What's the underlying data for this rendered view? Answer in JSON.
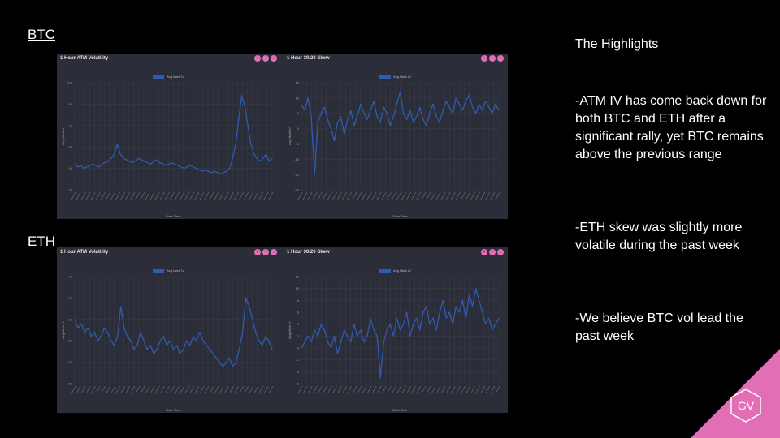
{
  "sections": {
    "btc": "BTC",
    "eth": "ETH"
  },
  "highlights": {
    "title": "The Highlights",
    "points": [
      "-ATM IV has come back down for both BTC and ETH after a significant rally, yet BTC remains above the previous range",
      "-ETH skew was slightly more volatile during the past week",
      "-We believe BTC vol lead the past week"
    ]
  },
  "logo": {
    "text": "GV",
    "color": "#e26fb5"
  },
  "colors": {
    "panel_bg": "#2b2d38",
    "series": "#2f5bb0",
    "accent": "#e26fb5"
  },
  "panel_icons": [
    "zoom-in-icon",
    "zoom-out-icon",
    "download-icon"
  ],
  "chart_data": [
    {
      "id": "btc-atm",
      "type": "line",
      "title": "1 Hour ATM Volatility",
      "xlabel": "Date Time",
      "ylabel": "Avg Mark IV",
      "legend": "top-center",
      "grid": true,
      "ylim": [
        30,
        105
      ],
      "yticks": [
        30,
        45,
        60,
        75,
        90,
        105
      ],
      "series": [
        {
          "name": "Avg Mark IV",
          "values": [
            48,
            46,
            47,
            45,
            46,
            47,
            48,
            47,
            46,
            48,
            49,
            50,
            52,
            55,
            62,
            55,
            52,
            51,
            50,
            49,
            50,
            52,
            51,
            50,
            49,
            48,
            50,
            51,
            49,
            48,
            47,
            48,
            49,
            48,
            47,
            46,
            45,
            46,
            47,
            46,
            45,
            44,
            43,
            44,
            43,
            42,
            43,
            42,
            41,
            42,
            43,
            45,
            52,
            62,
            80,
            96,
            88,
            75,
            62,
            55,
            52,
            50,
            52,
            55,
            50,
            52
          ]
        }
      ]
    },
    {
      "id": "btc-skew",
      "type": "line",
      "title": "1 Hour 30/20 Skew",
      "xlabel": "Date Time",
      "ylabel": "Avg Mark IV",
      "legend": "top-center",
      "grid": true,
      "ylim": [
        -20,
        15
      ],
      "yticks": [
        -20,
        -15,
        -10,
        -5,
        0,
        5,
        10,
        15
      ],
      "series": [
        {
          "name": "Avg Mark IV",
          "values": [
            8,
            6,
            10,
            4,
            -15,
            2,
            5,
            7,
            3,
            0,
            -4,
            2,
            4,
            -2,
            3,
            6,
            1,
            4,
            8,
            5,
            3,
            6,
            9,
            4,
            2,
            7,
            5,
            1,
            4,
            8,
            12,
            5,
            3,
            6,
            2,
            4,
            7,
            3,
            1,
            5,
            8,
            4,
            2,
            6,
            9,
            7,
            5,
            10,
            8,
            6,
            9,
            11,
            7,
            5,
            8,
            6,
            9,
            7,
            5,
            8,
            6
          ]
        }
      ]
    },
    {
      "id": "eth-atm",
      "type": "line",
      "title": "1 Hour ATM Volatility",
      "xlabel": "Date Time",
      "ylabel": "Avg Mark IV",
      "legend": "top-center",
      "grid": true,
      "ylim": [
        50,
        75
      ],
      "yticks": [
        50,
        55,
        60,
        65,
        70,
        75
      ],
      "series": [
        {
          "name": "Avg Mark IV",
          "values": [
            65,
            63,
            64,
            62,
            63,
            61,
            62,
            60,
            61,
            63,
            62,
            60,
            59,
            61,
            68,
            63,
            61,
            60,
            58,
            59,
            62,
            60,
            58,
            59,
            57,
            58,
            60,
            61,
            59,
            60,
            58,
            59,
            57,
            58,
            60,
            59,
            61,
            60,
            62,
            60,
            59,
            58,
            57,
            56,
            55,
            54,
            55,
            56,
            54,
            55,
            58,
            62,
            70,
            68,
            65,
            62,
            60,
            59,
            61,
            60,
            58
          ]
        }
      ]
    },
    {
      "id": "eth-skew",
      "type": "line",
      "title": "1 Hour 30/20 Skew",
      "xlabel": "Date Time",
      "ylabel": "Avg Mark IV",
      "legend": "top-center",
      "grid": true,
      "ylim": [
        -6,
        12
      ],
      "yticks": [
        -6,
        -4,
        -2,
        0,
        2,
        4,
        6,
        8,
        10,
        12
      ],
      "series": [
        {
          "name": "Avg Mark IV",
          "values": [
            0,
            1,
            2,
            1,
            3,
            2,
            4,
            3,
            1,
            0,
            2,
            -1,
            1,
            3,
            2,
            1,
            4,
            2,
            3,
            1,
            2,
            5,
            3,
            2,
            -5,
            1,
            3,
            4,
            2,
            5,
            3,
            4,
            6,
            2,
            4,
            5,
            3,
            6,
            7,
            4,
            5,
            3,
            6,
            8,
            5,
            6,
            4,
            7,
            6,
            8,
            5,
            9,
            7,
            10,
            8,
            6,
            4,
            5,
            3,
            4,
            5
          ]
        }
      ]
    }
  ]
}
